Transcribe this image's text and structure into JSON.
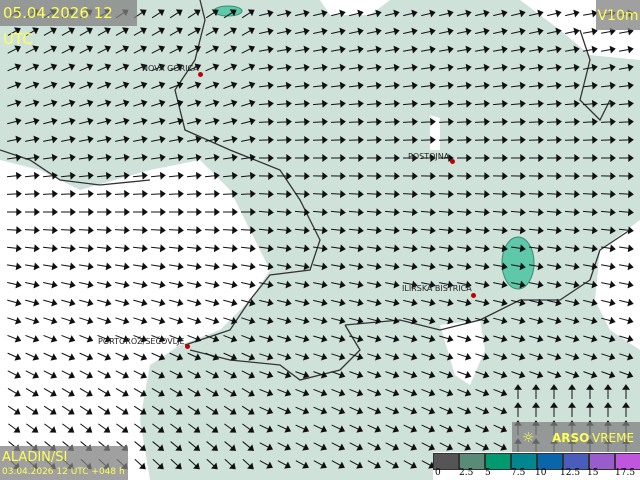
{
  "header": {
    "datetime": "05.04.2026 12 UTC",
    "variable": "V10m"
  },
  "model": {
    "name": "ALADIN/SI",
    "run": "03.04.2026 12 UTC +048 h"
  },
  "brand": {
    "logo_text_bold": "ARSO",
    "logo_text": "VREME",
    "icon": "sun-icon"
  },
  "cities": [
    {
      "name": "NOVA GORICA"
    },
    {
      "name": "POSTOJNA"
    },
    {
      "name": "ILIRSKA BISTRICA"
    },
    {
      "name": "PORTOROŽ/SEČOVLJE"
    }
  ],
  "legend": {
    "unit_ticks": [
      "0",
      "2.5",
      "5",
      "7.5",
      "10",
      "12.5",
      "15",
      "17.5"
    ],
    "colors": [
      "#555555",
      "#5a8a78",
      "#009a70",
      "#00868e",
      "#0a66aa",
      "#4a5cbc",
      "#9a5ccc",
      "#c055e0"
    ]
  },
  "colors": {
    "land": "#cfe2da",
    "sea": "#ffffff",
    "label": "#ffff55"
  }
}
